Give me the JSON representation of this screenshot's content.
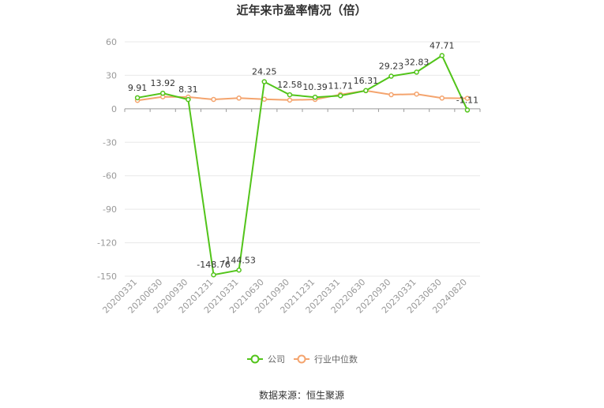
{
  "chart_data": {
    "type": "line",
    "title": "近年来市盈率情况（倍）",
    "categories": [
      "20200331",
      "20200630",
      "20200930",
      "20201231",
      "20210331",
      "20210630",
      "20210930",
      "20211231",
      "20220331",
      "20220630",
      "20220930",
      "20230331",
      "20230630",
      "20240820"
    ],
    "ylim": [
      -150,
      60
    ],
    "yticks": [
      60,
      30,
      0,
      -30,
      -60,
      -90,
      -120,
      -150
    ],
    "series": [
      {
        "name": "公司",
        "color": "#52c41a",
        "values": [
          9.91,
          13.92,
          8.31,
          -148.76,
          -144.53,
          24.25,
          12.58,
          10.39,
          11.71,
          16.31,
          29.23,
          32.83,
          47.71,
          -1.11
        ],
        "labels": [
          "9.91",
          "13.92",
          "8.31",
          "-148.76",
          "-144.53",
          "24.25",
          "12.58",
          "10.39",
          "11.71",
          "16.31",
          "29.23",
          "32.83",
          "47.71",
          "-1.11"
        ]
      },
      {
        "name": "行业中位数",
        "color": "#f4a46e",
        "values": [
          7.5,
          10.8,
          10.5,
          8.4,
          9.6,
          8.6,
          7.8,
          8.4,
          12.8,
          16.2,
          12.6,
          13.2,
          9.6,
          9.4
        ]
      }
    ],
    "grid": true,
    "legend_position": "bottom-center"
  },
  "source_text": "数据来源：恒生聚源"
}
